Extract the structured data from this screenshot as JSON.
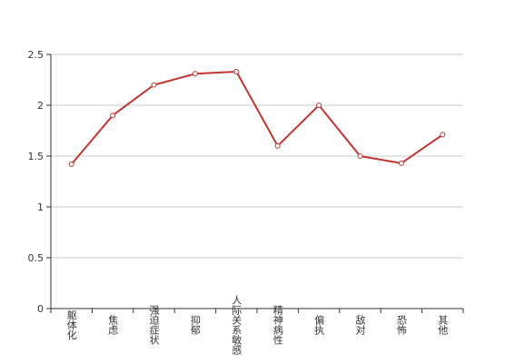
{
  "chart_data": {
    "type": "line",
    "title": "",
    "xlabel": "",
    "ylabel": "",
    "categories": [
      "躯体化",
      "焦虑",
      "强迫症状",
      "抑郁",
      "人际关系敏感",
      "精神病性",
      "偏执",
      "敌对",
      "恐怖",
      "其他"
    ],
    "series": [
      {
        "values": [
          1.42,
          1.9,
          2.2,
          2.31,
          2.33,
          1.6,
          2.0,
          1.5,
          1.43,
          1.71
        ]
      }
    ],
    "ylim": [
      0,
      2.5
    ],
    "yticks": [
      "0",
      "0.5",
      "1",
      "1.5",
      "2",
      "2.5"
    ],
    "grid": true,
    "legend": "none",
    "colors": {
      "line": "#c23531",
      "grid": "#cccccc",
      "axis": "#333333"
    }
  }
}
